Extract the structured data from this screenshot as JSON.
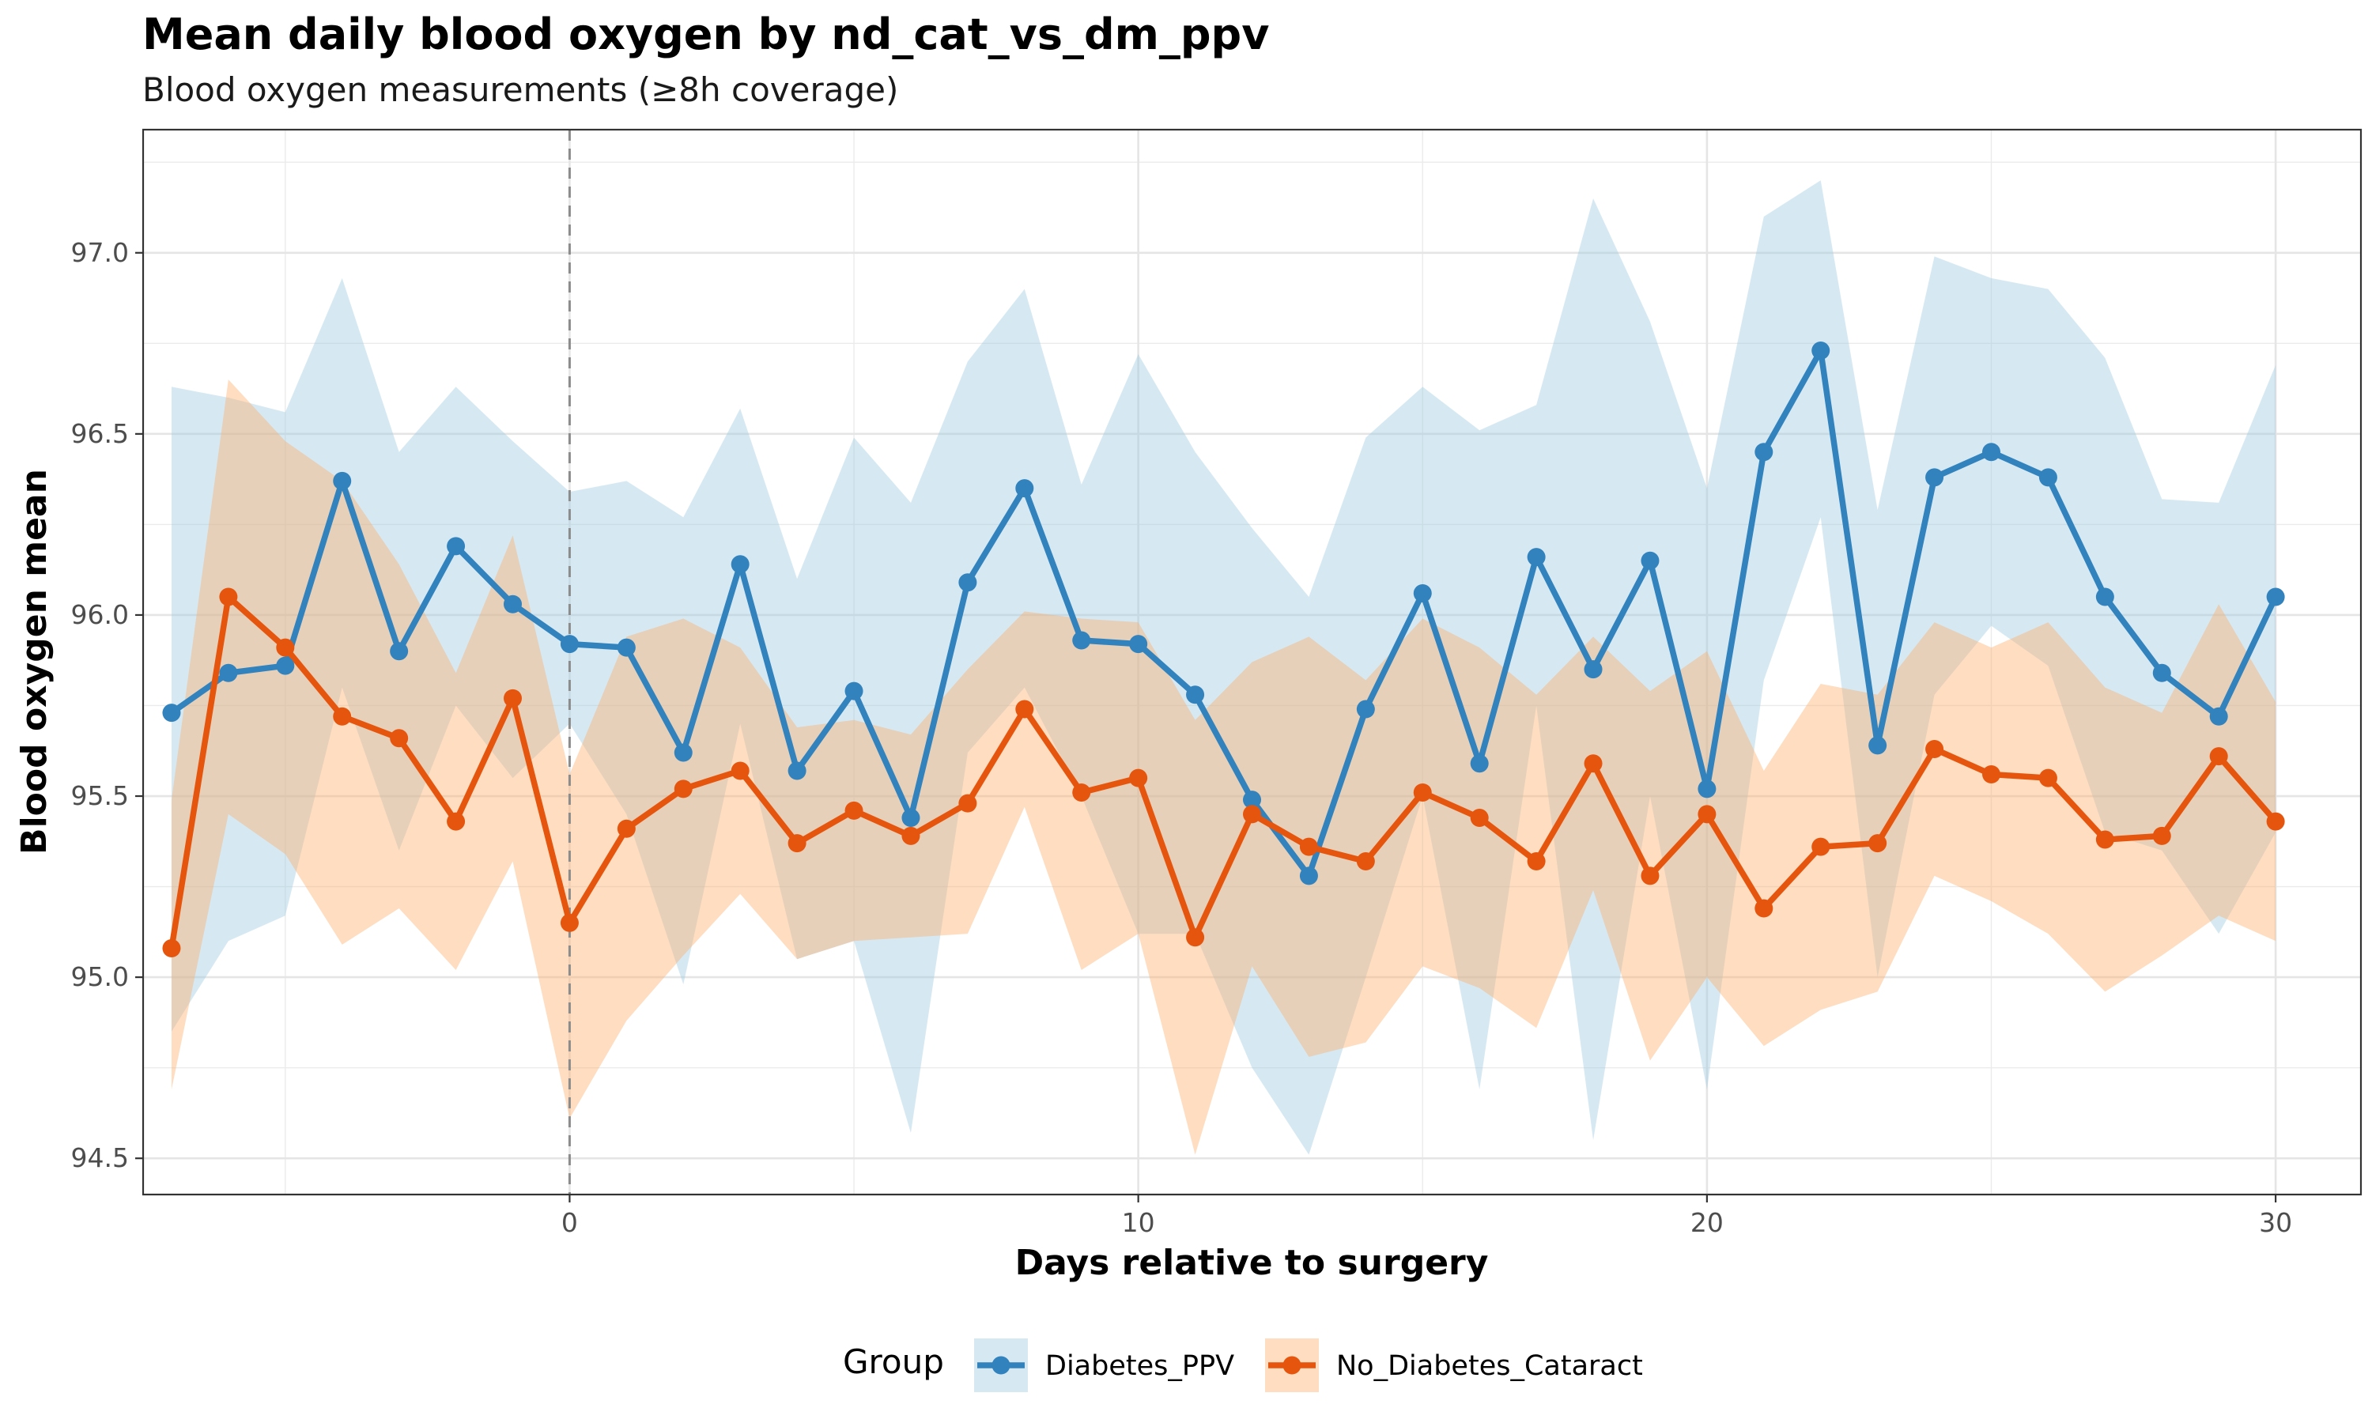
{
  "chart_data": {
    "type": "line",
    "title": "Mean daily blood oxygen by nd_cat_vs_dm_ppv",
    "subtitle": "Blood oxygen measurements (≥8h coverage)",
    "xlabel": "Days relative to surgery",
    "ylabel": "Blood oxygen mean",
    "xlim": [
      -7.5,
      31.5
    ],
    "ylim": [
      94.4,
      97.34
    ],
    "x_ticks": [
      0,
      10,
      20,
      30
    ],
    "x_tick_labels": [
      "0",
      "10",
      "20",
      "30"
    ],
    "y_ticks": [
      94.5,
      95.0,
      95.5,
      96.0,
      96.5,
      97.0
    ],
    "y_tick_labels": [
      "94.5",
      "95.0",
      "95.5",
      "96.0",
      "96.5",
      "97.0"
    ],
    "vline_x": 0,
    "grid": true,
    "legend": {
      "title": "Group",
      "position": "bottom"
    },
    "x": [
      -7,
      -6,
      -5,
      -4,
      -3,
      -2,
      -1,
      0,
      1,
      2,
      3,
      4,
      5,
      6,
      7,
      8,
      9,
      10,
      11,
      12,
      13,
      14,
      15,
      16,
      17,
      18,
      19,
      20,
      21,
      22,
      23,
      24,
      25,
      26,
      27,
      28,
      29,
      30
    ],
    "series": [
      {
        "name": "Diabetes_PPV",
        "color": "#3182bd",
        "ribbon_color": "#9ecae1",
        "values": [
          95.73,
          95.84,
          95.86,
          96.37,
          95.9,
          96.19,
          96.03,
          95.92,
          95.91,
          95.62,
          96.14,
          95.57,
          95.79,
          95.44,
          96.09,
          96.35,
          95.93,
          95.92,
          95.78,
          95.49,
          95.28,
          95.74,
          96.06,
          95.59,
          96.16,
          95.85,
          96.15,
          95.52,
          96.45,
          96.73,
          95.64,
          96.38,
          96.45,
          96.38,
          96.05,
          95.84,
          95.72,
          96.05
        ],
        "lower": [
          94.85,
          95.1,
          95.17,
          95.8,
          95.35,
          95.75,
          95.55,
          95.7,
          95.45,
          94.98,
          95.7,
          95.05,
          95.1,
          94.57,
          95.62,
          95.8,
          95.5,
          95.12,
          95.12,
          94.75,
          94.51,
          95.0,
          95.5,
          94.69,
          95.75,
          94.55,
          95.5,
          94.69,
          95.82,
          96.27,
          95.0,
          95.78,
          95.97,
          95.86,
          95.4,
          95.35,
          95.12,
          95.4
        ],
        "upper": [
          96.63,
          96.6,
          96.56,
          96.93,
          96.45,
          96.63,
          96.48,
          96.34,
          96.37,
          96.27,
          96.57,
          96.1,
          96.49,
          96.31,
          96.7,
          96.9,
          96.36,
          96.72,
          96.45,
          96.24,
          96.05,
          96.49,
          96.63,
          96.51,
          96.58,
          97.15,
          96.81,
          96.35,
          97.1,
          97.2,
          96.29,
          96.99,
          96.93,
          96.9,
          96.71,
          96.32,
          96.31,
          96.69
        ]
      },
      {
        "name": "No_Diabetes_Cataract",
        "color": "#e6550d",
        "ribbon_color": "#fdae6b",
        "values": [
          95.08,
          96.05,
          95.91,
          95.72,
          95.66,
          95.43,
          95.77,
          95.15,
          95.41,
          95.52,
          95.57,
          95.37,
          95.46,
          95.39,
          95.48,
          95.74,
          95.51,
          95.55,
          95.11,
          95.45,
          95.36,
          95.32,
          95.51,
          95.44,
          95.32,
          95.59,
          95.28,
          95.45,
          95.19,
          95.36,
          95.37,
          95.63,
          95.56,
          95.55,
          95.38,
          95.39,
          95.61,
          95.43
        ],
        "lower": [
          94.69,
          95.45,
          95.34,
          95.09,
          95.19,
          95.02,
          95.32,
          94.61,
          94.88,
          95.06,
          95.23,
          95.05,
          95.1,
          95.11,
          95.12,
          95.47,
          95.02,
          95.12,
          94.51,
          95.03,
          94.78,
          94.82,
          95.03,
          94.97,
          94.86,
          95.24,
          94.77,
          95.0,
          94.81,
          94.91,
          94.96,
          95.28,
          95.21,
          95.12,
          94.96,
          95.06,
          95.17,
          95.1
        ],
        "upper": [
          95.49,
          96.65,
          96.48,
          96.37,
          96.14,
          95.84,
          96.22,
          95.56,
          95.94,
          95.99,
          95.91,
          95.69,
          95.71,
          95.67,
          95.85,
          96.01,
          95.99,
          95.98,
          95.71,
          95.87,
          95.94,
          95.82,
          95.99,
          95.91,
          95.78,
          95.94,
          95.79,
          95.9,
          95.57,
          95.81,
          95.78,
          95.98,
          95.91,
          95.98,
          95.8,
          95.73,
          96.03,
          95.76
        ]
      }
    ]
  }
}
